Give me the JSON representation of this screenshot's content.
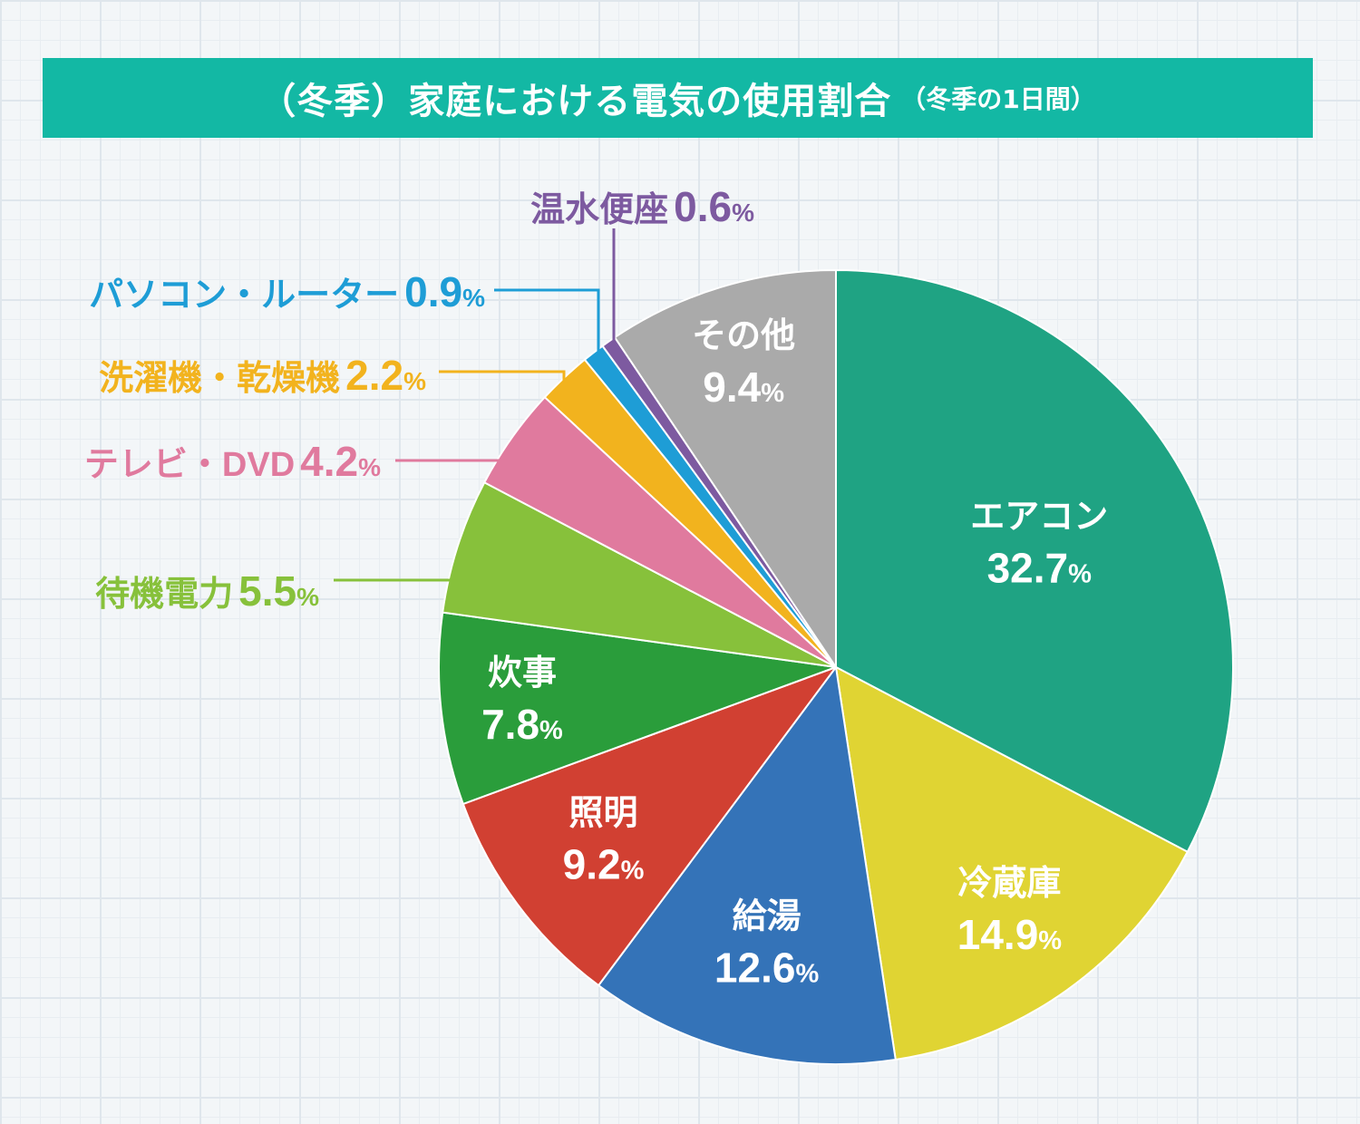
{
  "header": {
    "title": "（冬季）家庭における電気の使用割合",
    "subtitle": "（冬季の1日間）"
  },
  "chart_data": {
    "type": "pie",
    "unit": "%",
    "slices": [
      {
        "label": "エアコン",
        "value": 32.7,
        "value_text": "32.7",
        "color": "#1fa383",
        "label_position": "inside"
      },
      {
        "label": "冷蔵庫",
        "value": 14.9,
        "value_text": "14.9",
        "color": "#e0d433",
        "label_position": "inside"
      },
      {
        "label": "給湯",
        "value": 12.6,
        "value_text": "12.6",
        "color": "#3473b8",
        "label_position": "inside"
      },
      {
        "label": "照明",
        "value": 9.2,
        "value_text": "9.2",
        "color": "#d14032",
        "label_position": "inside"
      },
      {
        "label": "炊事",
        "value": 7.8,
        "value_text": "7.8",
        "color": "#2a9d3b",
        "label_position": "inside"
      },
      {
        "label": "待機電力",
        "value": 5.5,
        "value_text": "5.5",
        "color": "#87c13b",
        "label_position": "outside"
      },
      {
        "label": "テレビ・DVD",
        "value": 4.2,
        "value_text": "4.2",
        "color": "#e07a9e",
        "label_position": "outside"
      },
      {
        "label": "洗濯機・乾燥機",
        "value": 2.2,
        "value_text": "2.2",
        "color": "#f2b31e",
        "label_position": "outside"
      },
      {
        "label": "パソコン・ルーター",
        "value": 0.9,
        "value_text": "0.9",
        "color": "#1e9dd6",
        "label_position": "outside"
      },
      {
        "label": "温水便座",
        "value": 0.6,
        "value_text": "0.6",
        "color": "#7d5aa0",
        "label_position": "outside"
      },
      {
        "label": "その他",
        "value": 9.4,
        "value_text": "9.4",
        "color": "#aaaaaa",
        "label_position": "inside"
      }
    ]
  }
}
